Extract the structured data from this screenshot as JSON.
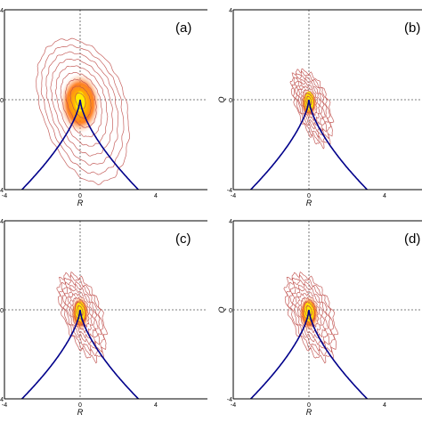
{
  "chart_data": [
    {
      "type": "heatmap",
      "panel_label": "(a)",
      "xlabel": "R",
      "ylabel": "",
      "xlim": [
        -4,
        4
      ],
      "ylim": [
        -4,
        4
      ],
      "x_ticks": [
        "-4",
        "0",
        "4"
      ],
      "y_ticks": [
        "-4",
        "0",
        "4"
      ],
      "grid": "dotted lines at R=0 and Q=0",
      "density_peak": {
        "R": 0,
        "Q": 0
      },
      "contour_spread": {
        "left": 2.2,
        "right": 2.4,
        "up": 2.7,
        "down": 3.7,
        "tilt": -0.25
      },
      "boundary_curve": "Q = -(27/4 R^2)^(1/3)"
    },
    {
      "type": "heatmap",
      "panel_label": "(b)",
      "xlabel": "R",
      "ylabel": "Q",
      "xlim": [
        -4,
        4
      ],
      "ylim": [
        -4,
        4
      ],
      "x_ticks": [
        "-4",
        "0",
        "4"
      ],
      "y_ticks": [
        "-4",
        "0",
        "4"
      ],
      "grid": "dotted lines at R=0 and Q=0",
      "density_peak": {
        "R": 0,
        "Q": 0
      },
      "contour_spread": {
        "left": 0.8,
        "right": 1.0,
        "up": 1.3,
        "down": 2.0,
        "tilt": -0.35
      },
      "boundary_curve": "Q = -(27/4 R^2)^(1/3)"
    },
    {
      "type": "heatmap",
      "panel_label": "(c)",
      "xlabel": "R",
      "ylabel": "",
      "xlim": [
        -4,
        4
      ],
      "ylim": [
        -4,
        4
      ],
      "x_ticks": [
        "-4",
        "0",
        "4"
      ],
      "y_ticks": [
        "-4",
        "0",
        "4"
      ],
      "grid": "dotted lines at R=0 and Q=0",
      "density_peak": {
        "R": 0,
        "Q": 0
      },
      "contour_spread": {
        "left": 1.0,
        "right": 1.1,
        "up": 1.6,
        "down": 2.2,
        "tilt": -0.35
      },
      "boundary_curve": "Q = -(27/4 R^2)^(1/3)"
    },
    {
      "type": "heatmap",
      "panel_label": "(d)",
      "xlabel": "R",
      "ylabel": "Q",
      "xlim": [
        -4,
        4
      ],
      "ylim": [
        -4,
        4
      ],
      "x_ticks": [
        "-4",
        "0",
        "4"
      ],
      "y_ticks": [
        "-4",
        "0",
        "4"
      ],
      "grid": "dotted lines at R=0 and Q=0",
      "density_peak": {
        "R": 0,
        "Q": 0
      },
      "contour_spread": {
        "left": 1.1,
        "right": 1.2,
        "up": 1.6,
        "down": 2.2,
        "tilt": -0.35
      },
      "boundary_curve": "Q = -(27/4 R^2)^(1/3)"
    }
  ],
  "colors": {
    "contour": "#c0504d",
    "boundary": "#00008b",
    "density_hot": "#fff200",
    "density_mid": "#ff6a00",
    "density_edge": "#ffd8c8"
  }
}
